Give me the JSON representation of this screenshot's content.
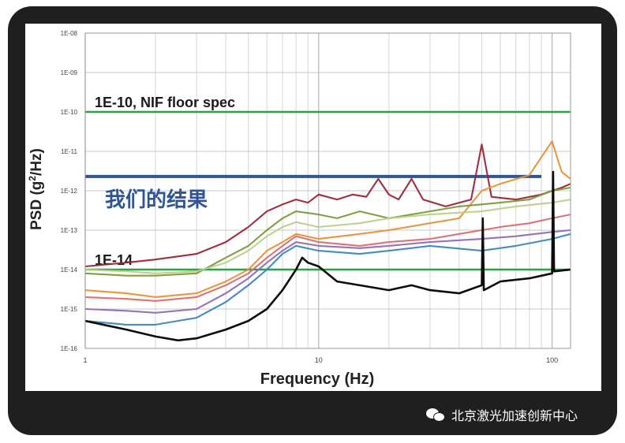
{
  "chart_data": {
    "type": "line",
    "xlabel": "Frequency (Hz)",
    "ylabel_main": "PSD (g",
    "ylabel_sup": "2",
    "ylabel_tail": "/Hz)",
    "x_scale": "log",
    "y_scale": "log",
    "xlim": [
      1,
      120
    ],
    "ylim": [
      1e-16,
      1e-08
    ],
    "x_ticks": [
      {
        "value": 1,
        "label": "1"
      },
      {
        "value": 10,
        "label": "10"
      },
      {
        "value": 100,
        "label": "100"
      }
    ],
    "y_ticks": [
      {
        "value": 1e-08,
        "label": "1E-08"
      },
      {
        "value": 1e-09,
        "label": "1E-09"
      },
      {
        "value": 1e-10,
        "label": "1E-10"
      },
      {
        "value": 1e-11,
        "label": "1E-11"
      },
      {
        "value": 1e-12,
        "label": "1E-12"
      },
      {
        "value": 1e-13,
        "label": "1E-13"
      },
      {
        "value": 1e-14,
        "label": "1E-14"
      },
      {
        "value": 1e-15,
        "label": "1E-15"
      },
      {
        "value": 1e-16,
        "label": "1E-16"
      }
    ],
    "grid": true,
    "reference_lines": [
      {
        "y": 1e-10,
        "label": "1E-10, NIF floor spec",
        "color": "#2ea043"
      },
      {
        "y": 1e-14,
        "label": "1E-14",
        "color": "#2ea043"
      }
    ],
    "our_result": {
      "y": 2.3e-12,
      "x_end": 90,
      "label": "我们的结果",
      "color": "#2f5597"
    },
    "series": [
      {
        "color": "#9b2335",
        "points": [
          [
            1,
            1.2e-14
          ],
          [
            1.5,
            1.5e-14
          ],
          [
            2,
            1.8e-14
          ],
          [
            3,
            2.5e-14
          ],
          [
            4,
            5e-14
          ],
          [
            5,
            1.2e-13
          ],
          [
            6,
            3e-13
          ],
          [
            7,
            4.5e-13
          ],
          [
            8,
            6e-13
          ],
          [
            9,
            5e-13
          ],
          [
            10,
            8e-13
          ],
          [
            12,
            6e-13
          ],
          [
            14,
            8e-13
          ],
          [
            16,
            7e-13
          ],
          [
            18,
            2e-12
          ],
          [
            20,
            8e-13
          ],
          [
            22,
            6e-13
          ],
          [
            25,
            2e-12
          ],
          [
            28,
            6e-13
          ],
          [
            35,
            4e-13
          ],
          [
            45,
            6e-13
          ],
          [
            50,
            1.5e-11
          ],
          [
            55,
            7e-13
          ],
          [
            70,
            6e-13
          ],
          [
            90,
            8e-13
          ],
          [
            110,
            1.2e-12
          ],
          [
            120,
            1.5e-12
          ]
        ]
      },
      {
        "color": "#e8903a",
        "points": [
          [
            1,
            3e-15
          ],
          [
            1.5,
            2.5e-15
          ],
          [
            2,
            2e-15
          ],
          [
            3,
            2.5e-15
          ],
          [
            4,
            5e-15
          ],
          [
            5,
            1e-14
          ],
          [
            6,
            3e-14
          ],
          [
            7,
            5e-14
          ],
          [
            8,
            8e-14
          ],
          [
            10,
            6e-14
          ],
          [
            15,
            8e-14
          ],
          [
            20,
            1e-13
          ],
          [
            30,
            1.5e-13
          ],
          [
            40,
            2e-13
          ],
          [
            50,
            1e-12
          ],
          [
            60,
            1.5e-12
          ],
          [
            80,
            2.5e-12
          ],
          [
            100,
            1.8e-11
          ],
          [
            110,
            3e-12
          ],
          [
            120,
            2e-12
          ]
        ]
      },
      {
        "color": "#7a9a3a",
        "points": [
          [
            1,
            8e-15
          ],
          [
            1.5,
            7e-15
          ],
          [
            2,
            7e-15
          ],
          [
            3,
            8e-15
          ],
          [
            4,
            2e-14
          ],
          [
            5,
            4e-14
          ],
          [
            6,
            1e-13
          ],
          [
            7,
            2e-13
          ],
          [
            8,
            3e-13
          ],
          [
            10,
            2.5e-13
          ],
          [
            12,
            2e-13
          ],
          [
            15,
            3e-13
          ],
          [
            20,
            2e-13
          ],
          [
            30,
            3e-13
          ],
          [
            40,
            4e-13
          ],
          [
            60,
            5e-13
          ],
          [
            80,
            6e-13
          ],
          [
            100,
            1e-12
          ],
          [
            120,
            1.2e-12
          ]
        ]
      },
      {
        "color": "#b9cf8a",
        "points": [
          [
            1,
            1e-14
          ],
          [
            1.5,
            9e-15
          ],
          [
            2,
            8e-15
          ],
          [
            3,
            9e-15
          ],
          [
            4,
            1.5e-14
          ],
          [
            5,
            3e-14
          ],
          [
            6,
            7e-14
          ],
          [
            7,
            1.2e-13
          ],
          [
            8,
            1.6e-13
          ],
          [
            10,
            1.2e-13
          ],
          [
            15,
            1.5e-13
          ],
          [
            20,
            2e-13
          ],
          [
            30,
            2.5e-13
          ],
          [
            50,
            3e-13
          ],
          [
            70,
            4e-13
          ],
          [
            100,
            5e-13
          ],
          [
            120,
            6e-13
          ]
        ]
      },
      {
        "color": "#d96d6d",
        "points": [
          [
            1,
            2e-15
          ],
          [
            1.5,
            1.8e-15
          ],
          [
            2,
            1.6e-15
          ],
          [
            3,
            2e-15
          ],
          [
            4,
            4e-15
          ],
          [
            5,
            8e-15
          ],
          [
            6,
            2e-14
          ],
          [
            7,
            4e-14
          ],
          [
            8,
            7e-14
          ],
          [
            10,
            5e-14
          ],
          [
            15,
            4e-14
          ],
          [
            20,
            5e-14
          ],
          [
            30,
            6e-14
          ],
          [
            40,
            8e-14
          ],
          [
            60,
            1.2e-13
          ],
          [
            80,
            1.5e-13
          ],
          [
            100,
            2e-13
          ],
          [
            120,
            2.5e-13
          ]
        ]
      },
      {
        "color": "#3a86b8",
        "points": [
          [
            1,
            5e-16
          ],
          [
            1.5,
            4e-16
          ],
          [
            2,
            4e-16
          ],
          [
            3,
            6e-16
          ],
          [
            4,
            1.5e-15
          ],
          [
            5,
            4e-15
          ],
          [
            6,
            1e-14
          ],
          [
            7,
            2.5e-14
          ],
          [
            8,
            4e-14
          ],
          [
            10,
            3e-14
          ],
          [
            15,
            2.5e-14
          ],
          [
            20,
            3e-14
          ],
          [
            30,
            4e-14
          ],
          [
            50,
            3e-14
          ],
          [
            70,
            4e-14
          ],
          [
            100,
            6e-14
          ],
          [
            120,
            8e-14
          ]
        ]
      },
      {
        "color": "#8e6bb5",
        "points": [
          [
            1,
            1e-15
          ],
          [
            1.5,
            9e-16
          ],
          [
            2,
            8e-16
          ],
          [
            3,
            1e-15
          ],
          [
            4,
            2.5e-15
          ],
          [
            5,
            6e-15
          ],
          [
            6,
            1.5e-14
          ],
          [
            7,
            3e-14
          ],
          [
            8,
            5e-14
          ],
          [
            10,
            4e-14
          ],
          [
            15,
            3.5e-14
          ],
          [
            20,
            4e-14
          ],
          [
            30,
            5e-14
          ],
          [
            50,
            6e-14
          ],
          [
            70,
            7e-14
          ],
          [
            100,
            9e-14
          ],
          [
            120,
            1e-13
          ]
        ]
      },
      {
        "color": "#000000",
        "points": [
          [
            1,
            5e-16
          ],
          [
            1.5,
            3e-16
          ],
          [
            2,
            2e-16
          ],
          [
            2.5,
            1.6e-16
          ],
          [
            3,
            1.8e-16
          ],
          [
            4,
            3e-16
          ],
          [
            5,
            5e-16
          ],
          [
            6,
            1e-15
          ],
          [
            7,
            3e-15
          ],
          [
            8,
            1e-14
          ],
          [
            8.5,
            2e-14
          ],
          [
            9,
            1.5e-14
          ],
          [
            10,
            1.2e-14
          ],
          [
            12,
            5e-15
          ],
          [
            15,
            4e-15
          ],
          [
            20,
            3e-15
          ],
          [
            25,
            4e-15
          ],
          [
            30,
            3e-15
          ],
          [
            40,
            2.5e-15
          ],
          [
            50,
            4e-15
          ],
          [
            50.5,
            2e-13
          ],
          [
            51,
            3e-15
          ],
          [
            60,
            5e-15
          ],
          [
            80,
            6e-15
          ],
          [
            100,
            8e-15
          ],
          [
            101,
            3e-12
          ],
          [
            102,
            9e-15
          ],
          [
            120,
            1e-14
          ]
        ]
      }
    ]
  },
  "watermark": {
    "text": "北京激光加速创新中心",
    "icon": "wechat-icon"
  }
}
